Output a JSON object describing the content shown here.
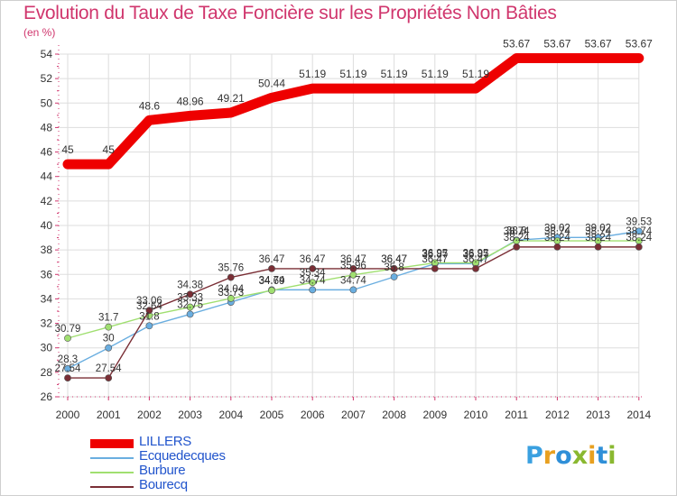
{
  "title": "Evolution du Taux de Taxe Foncière sur les Propriétés Non Bâties",
  "unit_label": "(en %)",
  "logo_text": "Proxiti",
  "colors": {
    "title": "#d0366d",
    "axis": "#d0366d",
    "grid": "#dddddd",
    "legend_text": "#2255cc"
  },
  "chart_data": {
    "type": "line",
    "title": "Evolution du Taux de Taxe Foncière sur les Propriétés Non Bâties",
    "ylabel": "(en %)",
    "xlabel": "",
    "x": [
      "2000",
      "2001",
      "2002",
      "2003",
      "2004",
      "2005",
      "2006",
      "2007",
      "2008",
      "2009",
      "2010",
      "2011",
      "2012",
      "2013",
      "2014"
    ],
    "ylim": [
      26,
      54
    ],
    "yticks": [
      26,
      28,
      30,
      32,
      34,
      36,
      38,
      40,
      42,
      44,
      46,
      48,
      50,
      52,
      54
    ],
    "grid": true,
    "legend": "bottom-left",
    "series": [
      {
        "name": "LILLERS",
        "color": "#ee0000",
        "values": [
          45,
          45,
          48.6,
          48.96,
          49.21,
          50.44,
          51.19,
          51.19,
          51.19,
          51.19,
          51.19,
          53.67,
          53.67,
          53.67,
          53.67
        ],
        "labels": [
          "45",
          "45",
          "48.6",
          "48.96",
          "49.21",
          "50.44",
          "51.19",
          "51.19",
          "51.19",
          "51.19",
          "51.19",
          "53.67",
          "53.67",
          "53.67",
          "53.67"
        ]
      },
      {
        "name": "Ecquedecques",
        "color": "#6aaee0",
        "values": [
          28.3,
          30,
          31.8,
          32.75,
          33.73,
          34.74,
          34.74,
          34.74,
          35.8,
          36.87,
          36.87,
          38.8,
          39.02,
          39.02,
          39.53
        ],
        "labels": [
          "28.3",
          "30",
          "31.8",
          "32.75",
          "33.73",
          "34.74",
          "34.74",
          "34.74",
          "35.8",
          "36.87",
          "36.87",
          "38.8",
          "39.02",
          "39.02",
          "39.53"
        ]
      },
      {
        "name": "Burbure",
        "color": "#a0df70",
        "values": [
          30.79,
          31.7,
          32.64,
          33.33,
          34.04,
          34.69,
          35.34,
          35.96,
          36.47,
          36.95,
          36.95,
          38.74,
          38.74,
          38.74,
          38.74
        ],
        "labels": [
          "30.79",
          "31.7",
          "32.64",
          "33.33",
          "34.04",
          "34.69",
          "35.34",
          "35.96",
          "36.47",
          "36.95",
          "36.95",
          "38.74",
          "38.74",
          "38.74",
          "38.74"
        ]
      },
      {
        "name": "Bourecq",
        "color": "#7a2e35",
        "values": [
          27.54,
          27.54,
          33.06,
          34.38,
          35.76,
          36.47,
          36.47,
          36.47,
          36.47,
          36.47,
          36.47,
          38.24,
          38.24,
          38.24,
          38.24
        ],
        "labels": [
          "27.54",
          "27.54",
          "33.06",
          "34.38",
          "35.76",
          "36.47",
          "36.47",
          "36.47",
          "36.47",
          "36.47",
          "36.47",
          "38.24",
          "38.24",
          "38.24",
          "38.24"
        ]
      }
    ]
  }
}
